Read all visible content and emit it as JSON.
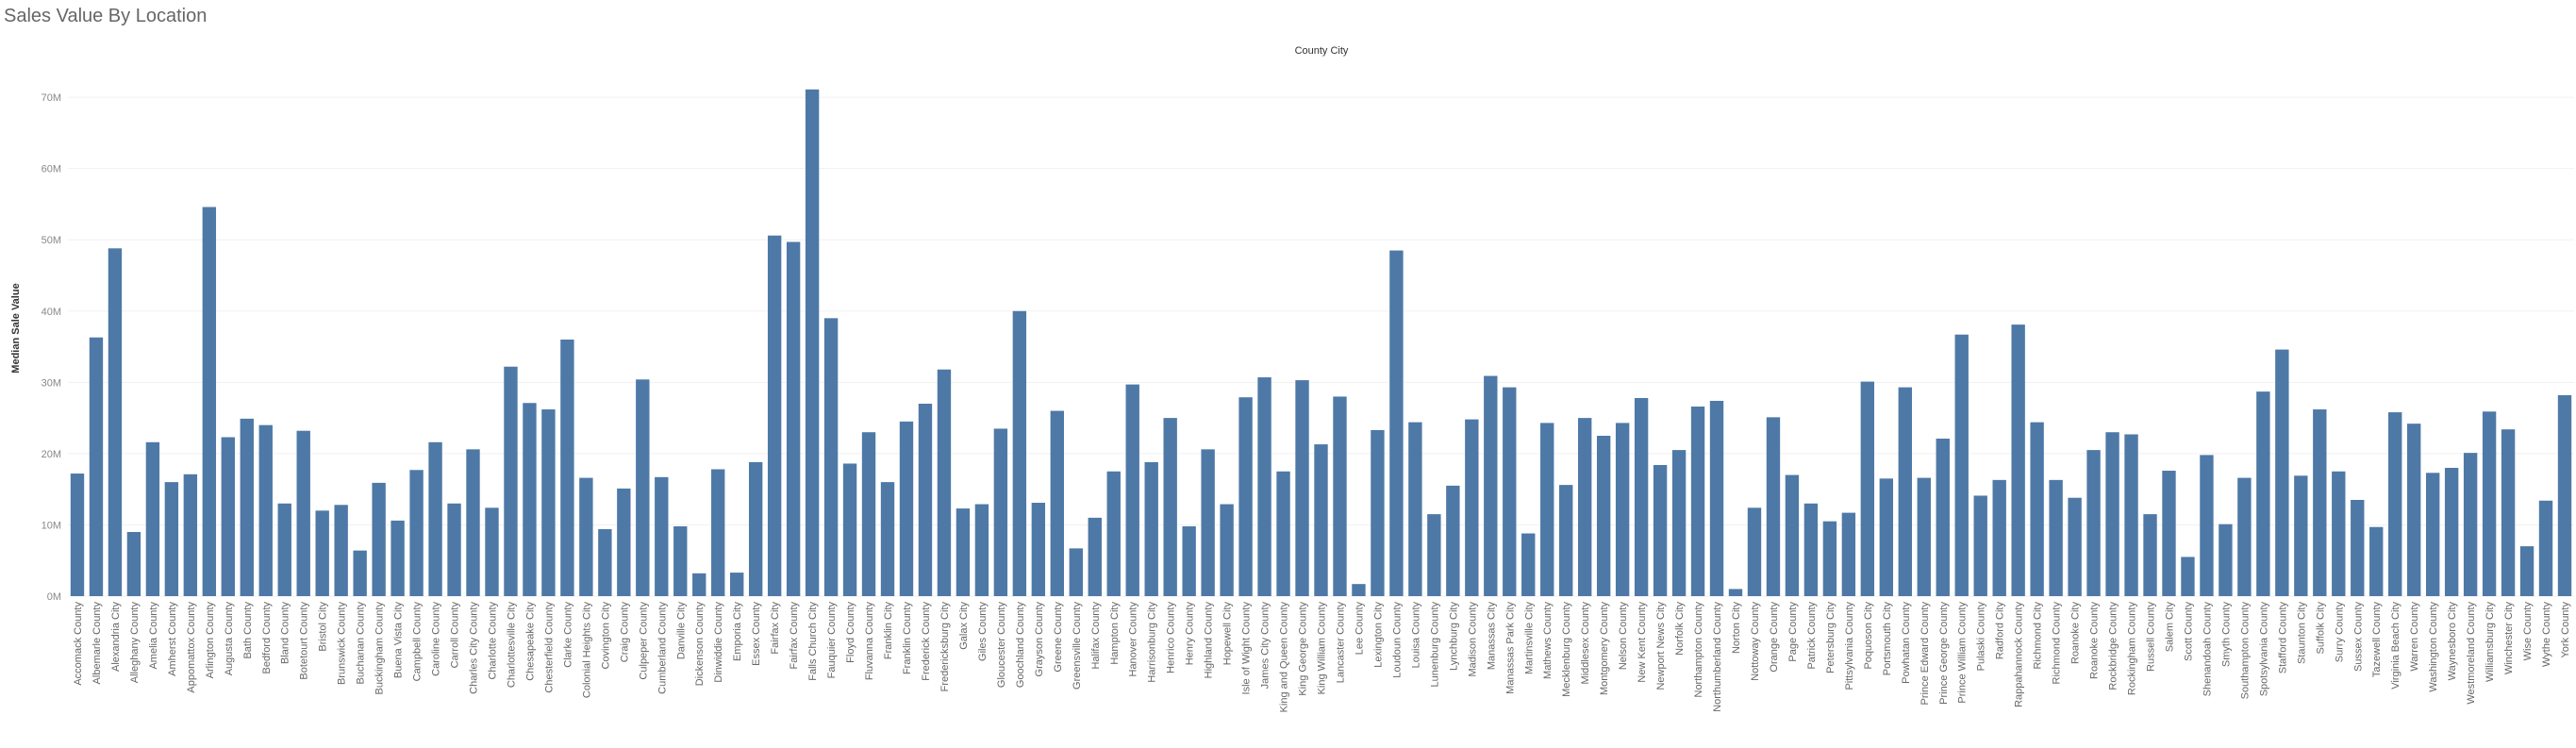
{
  "title": "Sales Value By Location",
  "chart_data": {
    "type": "bar",
    "title": "County City",
    "xlabel": "",
    "ylabel": "Median Sale Value",
    "ylim": [
      0,
      72000000
    ],
    "yticks": [
      0,
      10000000,
      20000000,
      30000000,
      40000000,
      50000000,
      60000000,
      70000000
    ],
    "ytick_labels": [
      "0M",
      "10M",
      "20M",
      "30M",
      "40M",
      "50M",
      "60M",
      "70M"
    ],
    "grid": true,
    "color": "#4e79a7",
    "categories": [
      "Accomack County",
      "Albemarle County",
      "Alexandria City",
      "Alleghany County",
      "Amelia County",
      "Amherst County",
      "Appomattox County",
      "Arlington County",
      "Augusta County",
      "Bath County",
      "Bedford County",
      "Bland County",
      "Botetourt County",
      "Bristol City",
      "Brunswick County",
      "Buchanan County",
      "Buckingham County",
      "Buena Vista City",
      "Campbell County",
      "Caroline County",
      "Carroll County",
      "Charles City County",
      "Charlotte County",
      "Charlottesville City",
      "Chesapeake City",
      "Chesterfield County",
      "Clarke County",
      "Colonial Heights City",
      "Covington City",
      "Craig County",
      "Culpeper County",
      "Cumberland County",
      "Danville City",
      "Dickenson County",
      "Dinwiddie County",
      "Emporia City",
      "Essex County",
      "Fairfax City",
      "Fairfax County",
      "Falls Church City",
      "Fauquier County",
      "Floyd County",
      "Fluvanna County",
      "Franklin City",
      "Franklin County",
      "Frederick County",
      "Fredericksburg City",
      "Galax City",
      "Giles County",
      "Gloucester County",
      "Goochland County",
      "Grayson County",
      "Greene County",
      "Greensville County",
      "Halifax County",
      "Hampton City",
      "Hanover County",
      "Harrisonburg City",
      "Henrico County",
      "Henry County",
      "Highland County",
      "Hopewell City",
      "Isle of Wight County",
      "James City County",
      "King and Queen County",
      "King George County",
      "King William County",
      "Lancaster County",
      "Lee County",
      "Lexington City",
      "Loudoun County",
      "Louisa County",
      "Lunenburg County",
      "Lynchburg City",
      "Madison County",
      "Manassas City",
      "Manassas Park City",
      "Martinsville City",
      "Mathews County",
      "Mecklenburg County",
      "Middlesex County",
      "Montgomery County",
      "Nelson County",
      "New Kent County",
      "Newport News City",
      "Norfolk City",
      "Northampton County",
      "Northumberland County",
      "Norton City",
      "Nottoway County",
      "Orange County",
      "Page County",
      "Patrick County",
      "Petersburg City",
      "Pittsylvania County",
      "Poquoson City",
      "Portsmouth City",
      "Powhatan County",
      "Prince Edward County",
      "Prince George County",
      "Prince William County",
      "Pulaski County",
      "Radford City",
      "Rappahannock County",
      "Richmond City",
      "Richmond County",
      "Roanoke City",
      "Roanoke County",
      "Rockbridge County",
      "Rockingham County",
      "Russell County",
      "Salem City",
      "Scott County",
      "Shenandoah County",
      "Smyth County",
      "Southampton County",
      "Spotsylvania County",
      "Stafford County",
      "Staunton City",
      "Suffolk City",
      "Surry County",
      "Sussex County",
      "Tazewell County",
      "Virginia Beach City",
      "Warren County",
      "Washington County",
      "Waynesboro City",
      "Westmoreland County",
      "Williamsburg City",
      "Winchester City",
      "Wise County",
      "Wythe County",
      "York County"
    ],
    "values": [
      17200000,
      36300000,
      48800000,
      9000000,
      21600000,
      16000000,
      17100000,
      54600000,
      22300000,
      24900000,
      24000000,
      13000000,
      23200000,
      12000000,
      12800000,
      6400000,
      15900000,
      10600000,
      17700000,
      21600000,
      13000000,
      20600000,
      12400000,
      32200000,
      27100000,
      26200000,
      36000000,
      16600000,
      9400000,
      15100000,
      30400000,
      16700000,
      9800000,
      3200000,
      17800000,
      3300000,
      18800000,
      50600000,
      49700000,
      71100000,
      39000000,
      18600000,
      23000000,
      16000000,
      24500000,
      27000000,
      31800000,
      12300000,
      12900000,
      23500000,
      40000000,
      13100000,
      26000000,
      6700000,
      11000000,
      17500000,
      29700000,
      18800000,
      25000000,
      9800000,
      20600000,
      12900000,
      27900000,
      30700000,
      17500000,
      30300000,
      21300000,
      28000000,
      1700000,
      23300000,
      48500000,
      24400000,
      11500000,
      15500000,
      24800000,
      30900000,
      29300000,
      8800000,
      24300000,
      15600000,
      25000000,
      22500000,
      24300000,
      27800000,
      18400000,
      20500000,
      26600000,
      27400000,
      1000000,
      12400000,
      25100000,
      17000000,
      13000000,
      10500000,
      11700000,
      30100000,
      16500000,
      29300000,
      16600000,
      22100000,
      36700000,
      14100000,
      16300000,
      38100000,
      24400000,
      16300000,
      13800000,
      20500000,
      23000000,
      22700000,
      11500000,
      17600000,
      5500000,
      19800000,
      10100000,
      16600000,
      28700000,
      34600000,
      16900000,
      26200000,
      17500000,
      13500000,
      9700000,
      25800000,
      24200000,
      17300000,
      18000000,
      20100000,
      25900000,
      23400000,
      7000000,
      13400000,
      28200000
    ]
  }
}
